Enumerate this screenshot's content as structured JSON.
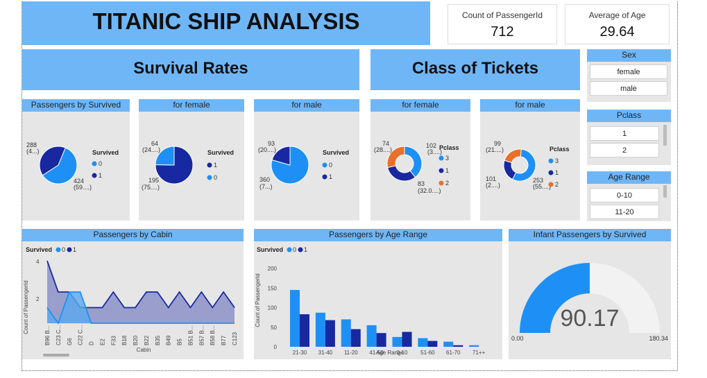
{
  "title": "TITANIC SHIP ANALYSIS",
  "kpis": [
    {
      "label": "Count of PassengerId",
      "value": "712"
    },
    {
      "label": "Average of Age",
      "value": "29.64"
    }
  ],
  "sections": {
    "survival": "Survival Rates",
    "class": "Class of Tickets"
  },
  "slicers": {
    "sex": {
      "title": "Sex",
      "items": [
        "female",
        "male"
      ]
    },
    "pclass": {
      "title": "Pclass",
      "items": [
        "1",
        "2"
      ]
    },
    "age_range": {
      "title": "Age Range",
      "items": [
        "0-10",
        "11-20"
      ]
    }
  },
  "colors": {
    "c0": "#1e90f5",
    "c1": "#1728a0",
    "c2": "#e8702a",
    "banner": "#6fb6f7",
    "panel": "#e6e6e6"
  },
  "pies": {
    "by_survived": {
      "title": "Passengers by Survived",
      "legend_title": "Survived",
      "legend": [
        "0",
        "1"
      ],
      "labels": {
        "a_val": "288",
        "a_sub": "(4...)",
        "b_val": "424",
        "b_sub": "(59....)"
      }
    },
    "female": {
      "title": "for female",
      "legend_title": "Survived",
      "legend": [
        "1",
        "0"
      ],
      "labels": {
        "a_val": "64",
        "a_sub": "(24....)",
        "b_val": "195",
        "b_sub": "(75....)"
      }
    },
    "male": {
      "title": "for male",
      "legend_title": "Survived",
      "legend": [
        "0",
        "1"
      ],
      "labels": {
        "a_val": "93",
        "a_sub": "(20....)",
        "b_val": "360",
        "b_sub": "(7...)"
      }
    },
    "class_female": {
      "title": "for female",
      "legend_title": "Pclass",
      "legend": [
        "3",
        "1",
        "2"
      ],
      "labels": {
        "a_val": "74",
        "a_sub": "(28....)",
        "b_val": "102",
        "b_sub": "(3....)",
        "c_val": "83",
        "c_sub": "(32.0....)"
      }
    },
    "class_male": {
      "title": "for male",
      "legend_title": "Pclass",
      "legend": [
        "3",
        "1",
        "2"
      ],
      "labels": {
        "a_val": "99",
        "a_sub": "(21....)",
        "b_val": "101",
        "b_sub": "(2....)",
        "c_val": "253",
        "c_sub": "(55....)"
      }
    }
  },
  "cabin": {
    "title": "Passengers by Cabin",
    "legend_title": "Survived",
    "legend": [
      "0",
      "1"
    ],
    "ylabel": "Count of PassengerId",
    "xlabel": "Cabin",
    "yticks": [
      "4",
      "2"
    ]
  },
  "age": {
    "title": "Passengers by Age Range",
    "legend_title": "Survived",
    "legend": [
      "0",
      "1"
    ],
    "ylabel": "Count of PassengerId",
    "xlabel": "Age Range",
    "yticks": [
      "200",
      "150",
      "100",
      "50",
      "0"
    ]
  },
  "gauge": {
    "title": "Infant Passengers by Survived",
    "value": "90.17",
    "min": "0.00",
    "max": "180.34",
    "fraction": 0.5
  },
  "chart_data": [
    {
      "type": "pie",
      "title": "Passengers by Survived",
      "categories": [
        "0",
        "1"
      ],
      "values": [
        424,
        288
      ]
    },
    {
      "type": "pie",
      "title": "for female",
      "categories": [
        "1",
        "0"
      ],
      "values": [
        195,
        64
      ]
    },
    {
      "type": "pie",
      "title": "for male",
      "categories": [
        "0",
        "1"
      ],
      "values": [
        360,
        93
      ]
    },
    {
      "type": "pie",
      "title": "for female (Pclass)",
      "categories": [
        "3",
        "1",
        "2"
      ],
      "values": [
        102,
        83,
        74
      ]
    },
    {
      "type": "pie",
      "title": "for male (Pclass)",
      "categories": [
        "3",
        "1",
        "2"
      ],
      "values": [
        253,
        101,
        99
      ]
    },
    {
      "type": "area",
      "title": "Passengers by Cabin",
      "categories": [
        "B96 B...",
        "C23 C...",
        "G6",
        "C22 C...",
        "D",
        "E2",
        "F33",
        "B18",
        "B20",
        "B22",
        "B35",
        "B49",
        "B5",
        "B51 B...",
        "B57 B...",
        "B58 B...",
        "B77",
        "C123"
      ],
      "series": [
        {
          "name": "0",
          "values": [
            1,
            0,
            2,
            2,
            0,
            0,
            0,
            0,
            0,
            0,
            0,
            0,
            0,
            0,
            0,
            0,
            0,
            0
          ]
        },
        {
          "name": "1",
          "values": [
            4,
            2,
            2,
            1,
            1,
            1,
            2,
            1,
            1,
            2,
            2,
            1,
            2,
            1,
            2,
            1,
            2,
            1
          ]
        }
      ],
      "ylim": [
        0,
        4
      ]
    },
    {
      "type": "bar",
      "title": "Passengers by Age Range",
      "categories": [
        "21-30",
        "31-40",
        "11-20",
        "41-50",
        "0-10",
        "51-60",
        "61-70",
        "71++"
      ],
      "series": [
        {
          "name": "0",
          "values": [
            145,
            87,
            70,
            55,
            25,
            22,
            13,
            4
          ]
        },
        {
          "name": "1",
          "values": [
            83,
            68,
            45,
            35,
            38,
            15,
            4,
            0
          ]
        }
      ],
      "ylim": [
        0,
        200
      ]
    },
    {
      "type": "gauge",
      "title": "Infant Passengers by Survived",
      "value": 90.17,
      "min": 0,
      "max": 180.34
    }
  ]
}
